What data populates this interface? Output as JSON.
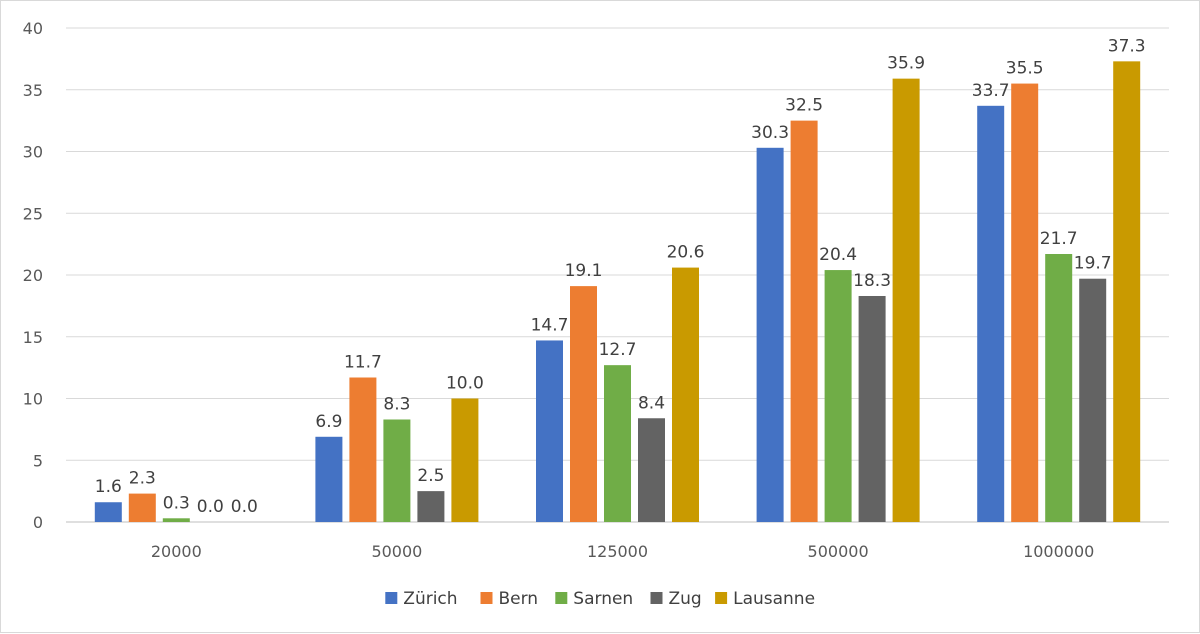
{
  "chart_data": {
    "type": "bar",
    "categories": [
      "20000",
      "50000",
      "125000",
      "500000",
      "1000000"
    ],
    "series": [
      {
        "name": "Zürich",
        "color": "#4472C4",
        "values": [
          1.6,
          6.9,
          14.7,
          30.3,
          33.7
        ]
      },
      {
        "name": "Bern",
        "color": "#ED7D31",
        "values": [
          2.3,
          11.7,
          19.1,
          32.5,
          35.5
        ]
      },
      {
        "name": "Sarnen",
        "color": "#70AD47",
        "values": [
          0.3,
          8.3,
          12.7,
          20.4,
          21.7
        ]
      },
      {
        "name": "Zug",
        "color": "#636363",
        "values": [
          0.0,
          2.5,
          8.4,
          18.3,
          19.7
        ]
      },
      {
        "name": "Lausanne",
        "color": "#C99A00",
        "values": [
          0.0,
          10.0,
          20.6,
          35.9,
          37.3
        ]
      }
    ],
    "ylim": [
      0,
      40
    ],
    "yticks": [
      0,
      5,
      10,
      15,
      20,
      25,
      30,
      35,
      40
    ],
    "grid": true,
    "legend_position": "bottom",
    "data_labels": true
  }
}
